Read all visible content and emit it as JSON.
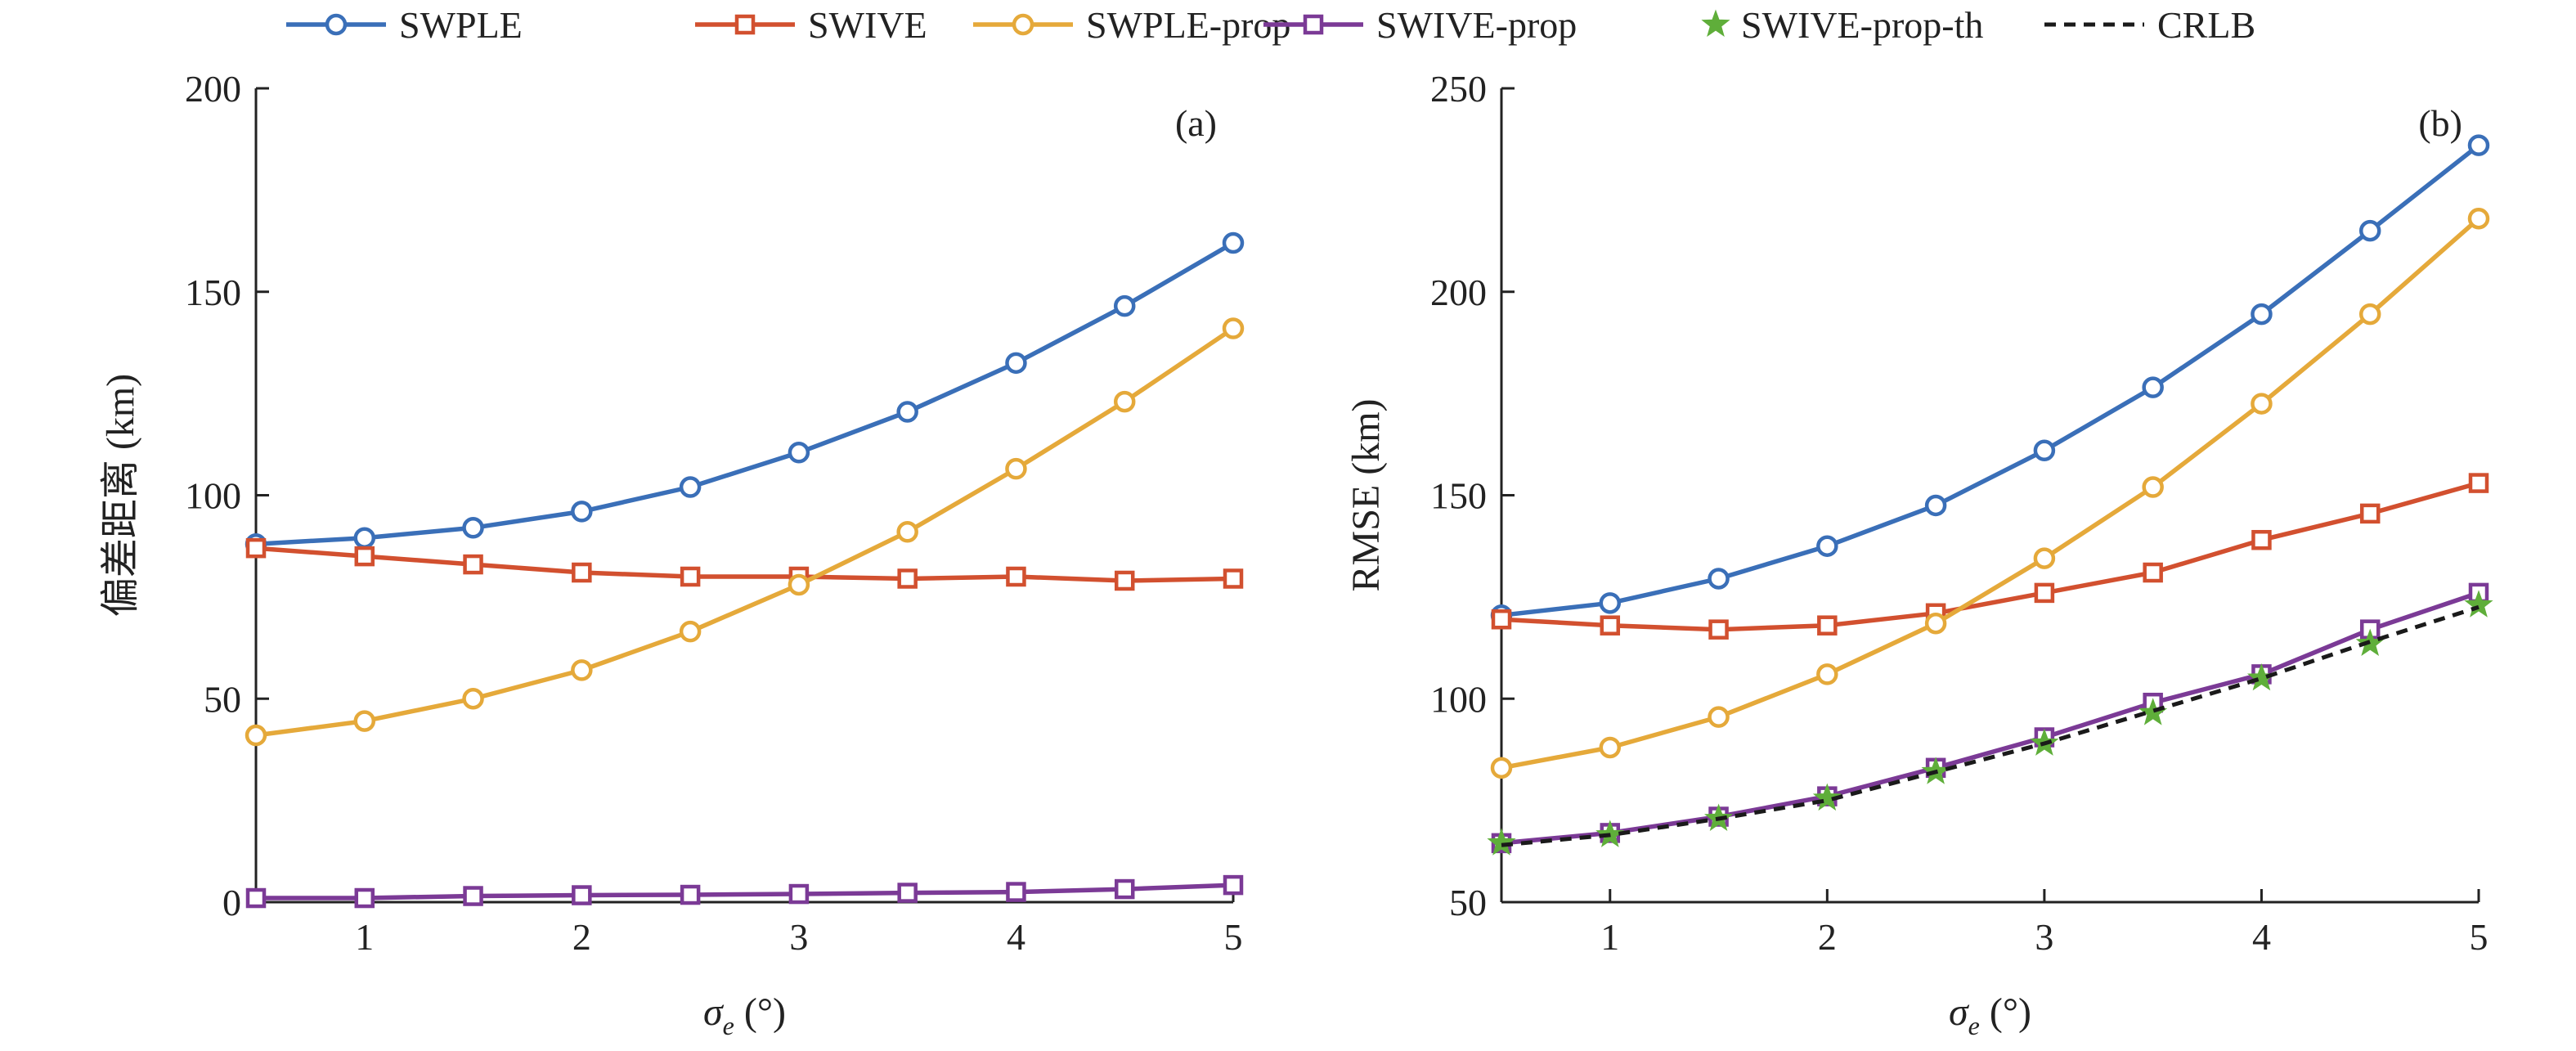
{
  "legend": {
    "items": [
      {
        "key": "swple",
        "label": "SWPLE"
      },
      {
        "key": "swive",
        "label": "SWIVE"
      },
      {
        "key": "swple_prop",
        "label": "SWPLE-prop"
      },
      {
        "key": "swive_prop",
        "label": "SWIVE-prop"
      },
      {
        "key": "swive_prop_th",
        "label": "SWIVE-prop-th"
      },
      {
        "key": "crlb",
        "label": "CRLB"
      }
    ]
  },
  "styles": {
    "swple": {
      "color": "#3A6FB8",
      "marker": "circle",
      "dash": "solid"
    },
    "swive": {
      "color": "#D2502F",
      "marker": "square",
      "dash": "solid"
    },
    "swple_prop": {
      "color": "#E5A93A",
      "marker": "circle",
      "dash": "solid"
    },
    "swive_prop": {
      "color": "#7B3A96",
      "marker": "square",
      "dash": "solid"
    },
    "swive_prop_th": {
      "color": "#5FAE3A",
      "marker": "star",
      "dash": "none"
    },
    "crlb": {
      "color": "#1a1a1a",
      "marker": "none",
      "dash": "dashed"
    }
  },
  "chart_data": [
    {
      "type": "line",
      "panel_label": "(a)",
      "ylabel": "偏差距离 (km)",
      "xlabel_symbol": "σ",
      "xlabel_sub": "e",
      "xlabel_unit": " (°)",
      "xlim": [
        0.5,
        5
      ],
      "ylim": [
        0,
        200
      ],
      "xticks": [
        1,
        2,
        3,
        4,
        5
      ],
      "yticks": [
        0,
        50,
        100,
        150,
        200
      ],
      "x": [
        0.5,
        1,
        1.5,
        2,
        2.5,
        3,
        3.5,
        4,
        4.5,
        5
      ],
      "series": [
        {
          "key": "swple",
          "name": "SWPLE",
          "values": [
            88,
            89.5,
            92,
            96,
            102,
            110.5,
            120.5,
            132.5,
            146.5,
            162
          ]
        },
        {
          "key": "swive",
          "name": "SWIVE",
          "values": [
            87,
            85,
            83,
            81,
            80,
            80,
            79.5,
            80,
            79,
            79.5
          ]
        },
        {
          "key": "swple_prop",
          "name": "SWPLE-prop",
          "values": [
            41,
            44.5,
            50,
            57,
            66.5,
            78,
            91,
            106.5,
            123,
            141
          ]
        },
        {
          "key": "swive_prop",
          "name": "SWIVE-prop",
          "values": [
            1,
            1,
            1.5,
            1.7,
            1.8,
            2,
            2.3,
            2.5,
            3.2,
            4.2
          ]
        }
      ]
    },
    {
      "type": "line",
      "panel_label": "(b)",
      "ylabel": "RMSE (km)",
      "xlabel_symbol": "σ",
      "xlabel_sub": "e",
      "xlabel_unit": " (°)",
      "xlim": [
        0.5,
        5
      ],
      "ylim": [
        50,
        250
      ],
      "xticks": [
        1,
        2,
        3,
        4,
        5
      ],
      "yticks": [
        50,
        100,
        150,
        200,
        250
      ],
      "x": [
        0.5,
        1,
        1.5,
        2,
        2.5,
        3,
        3.5,
        4,
        4.5,
        5
      ],
      "series": [
        {
          "key": "swple",
          "name": "SWPLE",
          "values": [
            120.5,
            123.5,
            129.5,
            137.5,
            147.5,
            161,
            176.5,
            194.5,
            215,
            236
          ]
        },
        {
          "key": "swive",
          "name": "SWIVE",
          "values": [
            119.5,
            118,
            117,
            118,
            121,
            126,
            131,
            139,
            145.5,
            153
          ]
        },
        {
          "key": "swple_prop",
          "name": "SWPLE-prop",
          "values": [
            83,
            88,
            95.5,
            106,
            118.5,
            134.5,
            152,
            172.5,
            194.5,
            218
          ]
        },
        {
          "key": "swive_prop",
          "name": "SWIVE-prop",
          "values": [
            64.5,
            67,
            71,
            76,
            83,
            90.5,
            99,
            106,
            117,
            126
          ]
        },
        {
          "key": "swive_prop_th",
          "name": "SWIVE-prop-th",
          "values": [
            64.5,
            66.5,
            70.5,
            75.5,
            82,
            89,
            96.5,
            105,
            113.5,
            123
          ]
        },
        {
          "key": "crlb",
          "name": "CRLB",
          "values": [
            64,
            66.5,
            70.5,
            75,
            82,
            89,
            97,
            105,
            114,
            122.5
          ]
        }
      ]
    }
  ]
}
